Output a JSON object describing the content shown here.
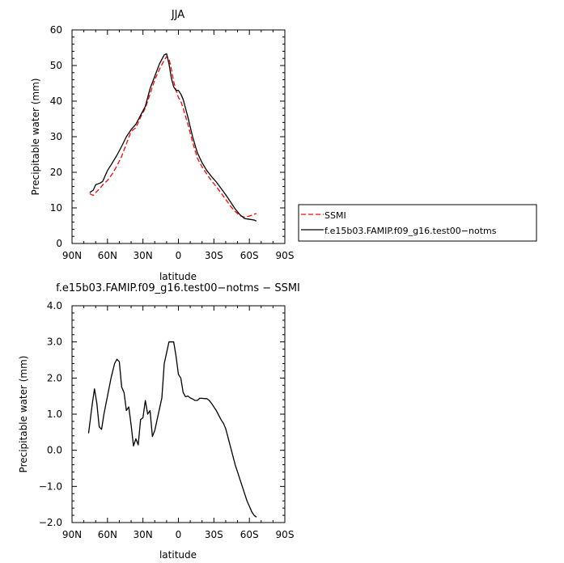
{
  "chart_data": [
    {
      "type": "line",
      "title": "JJA",
      "xlabel": "latitude",
      "ylabel": "Precipitable water (mm)",
      "xlim": [
        90,
        -90
      ],
      "ylim": [
        0,
        60
      ],
      "x_tick_values": [
        90,
        60,
        30,
        0,
        -30,
        -60,
        -90
      ],
      "x_tick_labels": [
        "90N",
        "60N",
        "30N",
        "0",
        "30S",
        "60S",
        "90S"
      ],
      "y_tick_values": [
        0,
        10,
        20,
        30,
        40,
        50,
        60
      ],
      "y_tick_labels": [
        "0",
        "10",
        "20",
        "30",
        "40",
        "50",
        "60"
      ],
      "grid": false,
      "legend_position": "right",
      "series": [
        {
          "name": "SSMI",
          "color": "#ff0000",
          "dash": "dashed",
          "x": [
            75,
            72,
            70,
            66,
            64,
            60,
            56,
            52,
            48,
            44,
            40,
            36,
            32,
            28,
            24,
            20,
            16,
            12,
            10,
            8,
            6,
            4,
            2,
            0,
            -2,
            -4,
            -8,
            -12,
            -16,
            -20,
            -24,
            -28,
            -32,
            -36,
            -40,
            -44,
            -48,
            -52,
            -56,
            -60,
            -64,
            -66
          ],
          "y": [
            14.0,
            13.5,
            14.3,
            15.6,
            16.5,
            17.7,
            19.5,
            21.8,
            24.5,
            28,
            31.5,
            32.5,
            35.5,
            38,
            42,
            46,
            49,
            51.5,
            52.5,
            52,
            49,
            45.5,
            43,
            41,
            40,
            38,
            33.5,
            28.5,
            24,
            21.5,
            19.5,
            17.6,
            16,
            14.2,
            12.4,
            10.5,
            9,
            7.8,
            7.4,
            7.7,
            8.2,
            8.4
          ]
        },
        {
          "name": "f.e15b03.FAMIP.f09_g16.test00−notms",
          "color": "#000000",
          "dash": "solid",
          "x": [
            75,
            72,
            70,
            66,
            64,
            60,
            56,
            52,
            48,
            44,
            40,
            36,
            32,
            28,
            24,
            20,
            16,
            12,
            10,
            8,
            6,
            4,
            2,
            0,
            -2,
            -4,
            -8,
            -12,
            -16,
            -20,
            -24,
            -28,
            -32,
            -36,
            -40,
            -44,
            -48,
            -52,
            -56,
            -60,
            -64,
            -66
          ],
          "y": [
            14.3,
            15,
            16.5,
            17,
            17.5,
            20.5,
            22.6,
            24.8,
            27.3,
            30,
            32,
            33.5,
            36,
            38.5,
            43.5,
            47,
            50.5,
            53,
            53.3,
            50.5,
            46.5,
            44,
            43,
            43,
            42,
            40.5,
            35.5,
            30,
            25.5,
            22.7,
            20.5,
            18.8,
            17.3,
            15.5,
            13.7,
            11.7,
            9.7,
            8.1,
            7,
            6.8,
            6.6,
            6.3
          ]
        }
      ]
    },
    {
      "type": "line",
      "title": "f.e15b03.FAMIP.f09_g16.test00−notms − SSMI",
      "xlabel": "latitude",
      "ylabel": "Precipitable water (mm)",
      "xlim": [
        90,
        -90
      ],
      "ylim": [
        -2.0,
        4.0
      ],
      "x_tick_values": [
        90,
        60,
        30,
        0,
        -30,
        -60,
        -90
      ],
      "x_tick_labels": [
        "90N",
        "60N",
        "30N",
        "0",
        "30S",
        "60S",
        "90S"
      ],
      "y_tick_values": [
        -2.0,
        -1.0,
        0.0,
        1.0,
        2.0,
        3.0,
        4.0
      ],
      "y_tick_labels": [
        "−2.0",
        "−1.0",
        "0.0",
        "1.0",
        "2.0",
        "3.0",
        "4.0"
      ],
      "grid": false,
      "series": [
        {
          "color": "#000000",
          "dash": "solid",
          "x": [
            76,
            73,
            71,
            69,
            67,
            65,
            63,
            60,
            57,
            54,
            52,
            50,
            48,
            46,
            44,
            42,
            40,
            38,
            36,
            34,
            32,
            30,
            28,
            26,
            24,
            22,
            20,
            18,
            16,
            14,
            12,
            8,
            4,
            2,
            0,
            -2,
            -4,
            -6,
            -8,
            -10,
            -12,
            -14,
            -16,
            -18,
            -20,
            -22,
            -24,
            -26,
            -28,
            -32,
            -36,
            -38,
            -40,
            -42,
            -44,
            -46,
            -48,
            -50,
            -52,
            -54,
            -56,
            -58,
            -60,
            -62,
            -64,
            -66
          ],
          "y": [
            0.47,
            1.25,
            1.7,
            1.3,
            0.65,
            0.58,
            1.0,
            1.5,
            2.0,
            2.4,
            2.52,
            2.45,
            1.75,
            1.6,
            1.1,
            1.2,
            0.7,
            0.12,
            0.32,
            0.15,
            0.85,
            0.9,
            1.38,
            1.0,
            1.1,
            0.38,
            0.55,
            0.85,
            1.15,
            1.45,
            2.4,
            3.0,
            3.0,
            2.6,
            2.1,
            2.0,
            1.6,
            1.48,
            1.5,
            1.45,
            1.42,
            1.38,
            1.38,
            1.44,
            1.44,
            1.43,
            1.43,
            1.38,
            1.3,
            1.1,
            0.85,
            0.75,
            0.6,
            0.35,
            0.1,
            -0.15,
            -0.4,
            -0.6,
            -0.8,
            -1.0,
            -1.2,
            -1.4,
            -1.55,
            -1.7,
            -1.8,
            -1.85
          ]
        }
      ]
    }
  ]
}
